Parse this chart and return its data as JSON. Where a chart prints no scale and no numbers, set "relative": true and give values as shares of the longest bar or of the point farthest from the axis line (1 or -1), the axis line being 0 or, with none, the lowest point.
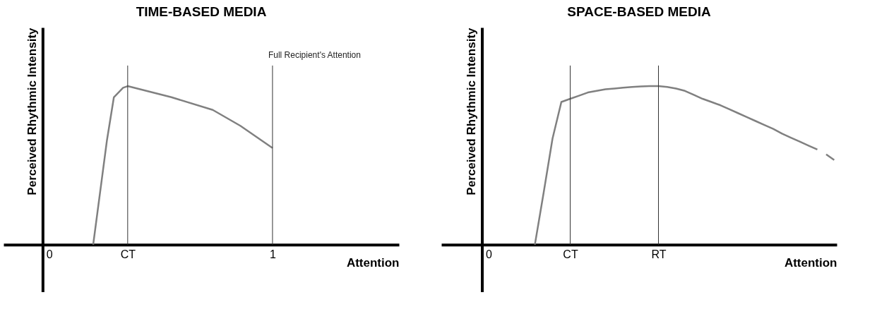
{
  "chart_data": [
    {
      "type": "line",
      "title": "TIME-BASED MEDIA",
      "xlabel": "Attention",
      "ylabel": "Perceived Rhythmic Intensity",
      "relative": true,
      "xlim": [
        -0.17,
        1.55
      ],
      "xticks": [
        0,
        {
          "value": 0.37,
          "label": "CT"
        },
        1
      ],
      "tick_labels": "x",
      "grid": false,
      "line_style": "solid",
      "series": [
        {
          "color": "#808080",
          "x": [
            0.22,
            0.28,
            0.31,
            0.35,
            0.37,
            0.56,
            0.74,
            0.86,
            1.0
          ],
          "values": [
            0,
            0.66,
            0.93,
            0.99,
            1,
            0.93,
            0.85,
            0.75,
            0.61
          ]
        }
      ],
      "ref_lines": [
        {
          "axis": "x",
          "value": 0.37,
          "color": "#333333"
        },
        {
          "axis": "x",
          "value": 1,
          "label": "Full Recipient's Attention",
          "color": "#333333"
        }
      ]
    },
    {
      "type": "line",
      "title": "SPACE-BASED MEDIA",
      "xlabel": "Attention",
      "ylabel": "Perceived Rhythmic Intensity",
      "relative": true,
      "categories": [
        "0",
        null,
        null,
        null,
        null,
        null,
        null,
        null,
        null,
        null,
        "CT",
        null,
        null,
        null,
        null,
        null,
        null,
        null,
        null,
        null,
        "RT",
        null,
        null,
        null,
        null,
        null,
        null,
        null,
        null,
        null,
        null,
        null,
        null,
        null,
        null,
        null,
        null,
        null,
        null,
        null,
        null
      ],
      "tick_labels": "x",
      "grid": false,
      "line_style": "solid",
      "series": [
        {
          "color": "#808080",
          "values": [
            null,
            null,
            null,
            null,
            null,
            null,
            0,
            0.33,
            0.67,
            0.9,
            0.92,
            0.94,
            0.96,
            0.97,
            0.98,
            0.985,
            0.99,
            0.995,
            0.998,
            1,
            1,
            0.995,
            0.985,
            0.97,
            0.945,
            0.92,
            0.9,
            0.88,
            0.855,
            0.83,
            0.805,
            0.78,
            0.755,
            0.73,
            0.7,
            0.675,
            0.65,
            0.625,
            0.6,
            null,
            null
          ]
        },
        {
          "color": "#808080",
          "line_style": "dashed",
          "values": [
            null,
            null,
            null,
            null,
            null,
            null,
            null,
            null,
            null,
            null,
            null,
            null,
            null,
            null,
            null,
            null,
            null,
            null,
            null,
            null,
            null,
            null,
            null,
            null,
            null,
            null,
            null,
            null,
            null,
            null,
            null,
            null,
            null,
            null,
            null,
            null,
            null,
            null,
            null,
            0.57,
            0.53
          ]
        }
      ],
      "ref_lines": [
        {
          "axis": "x",
          "value": "CT",
          "color": "#333333"
        },
        {
          "axis": "x",
          "value": "RT",
          "color": "#333333"
        }
      ]
    }
  ]
}
